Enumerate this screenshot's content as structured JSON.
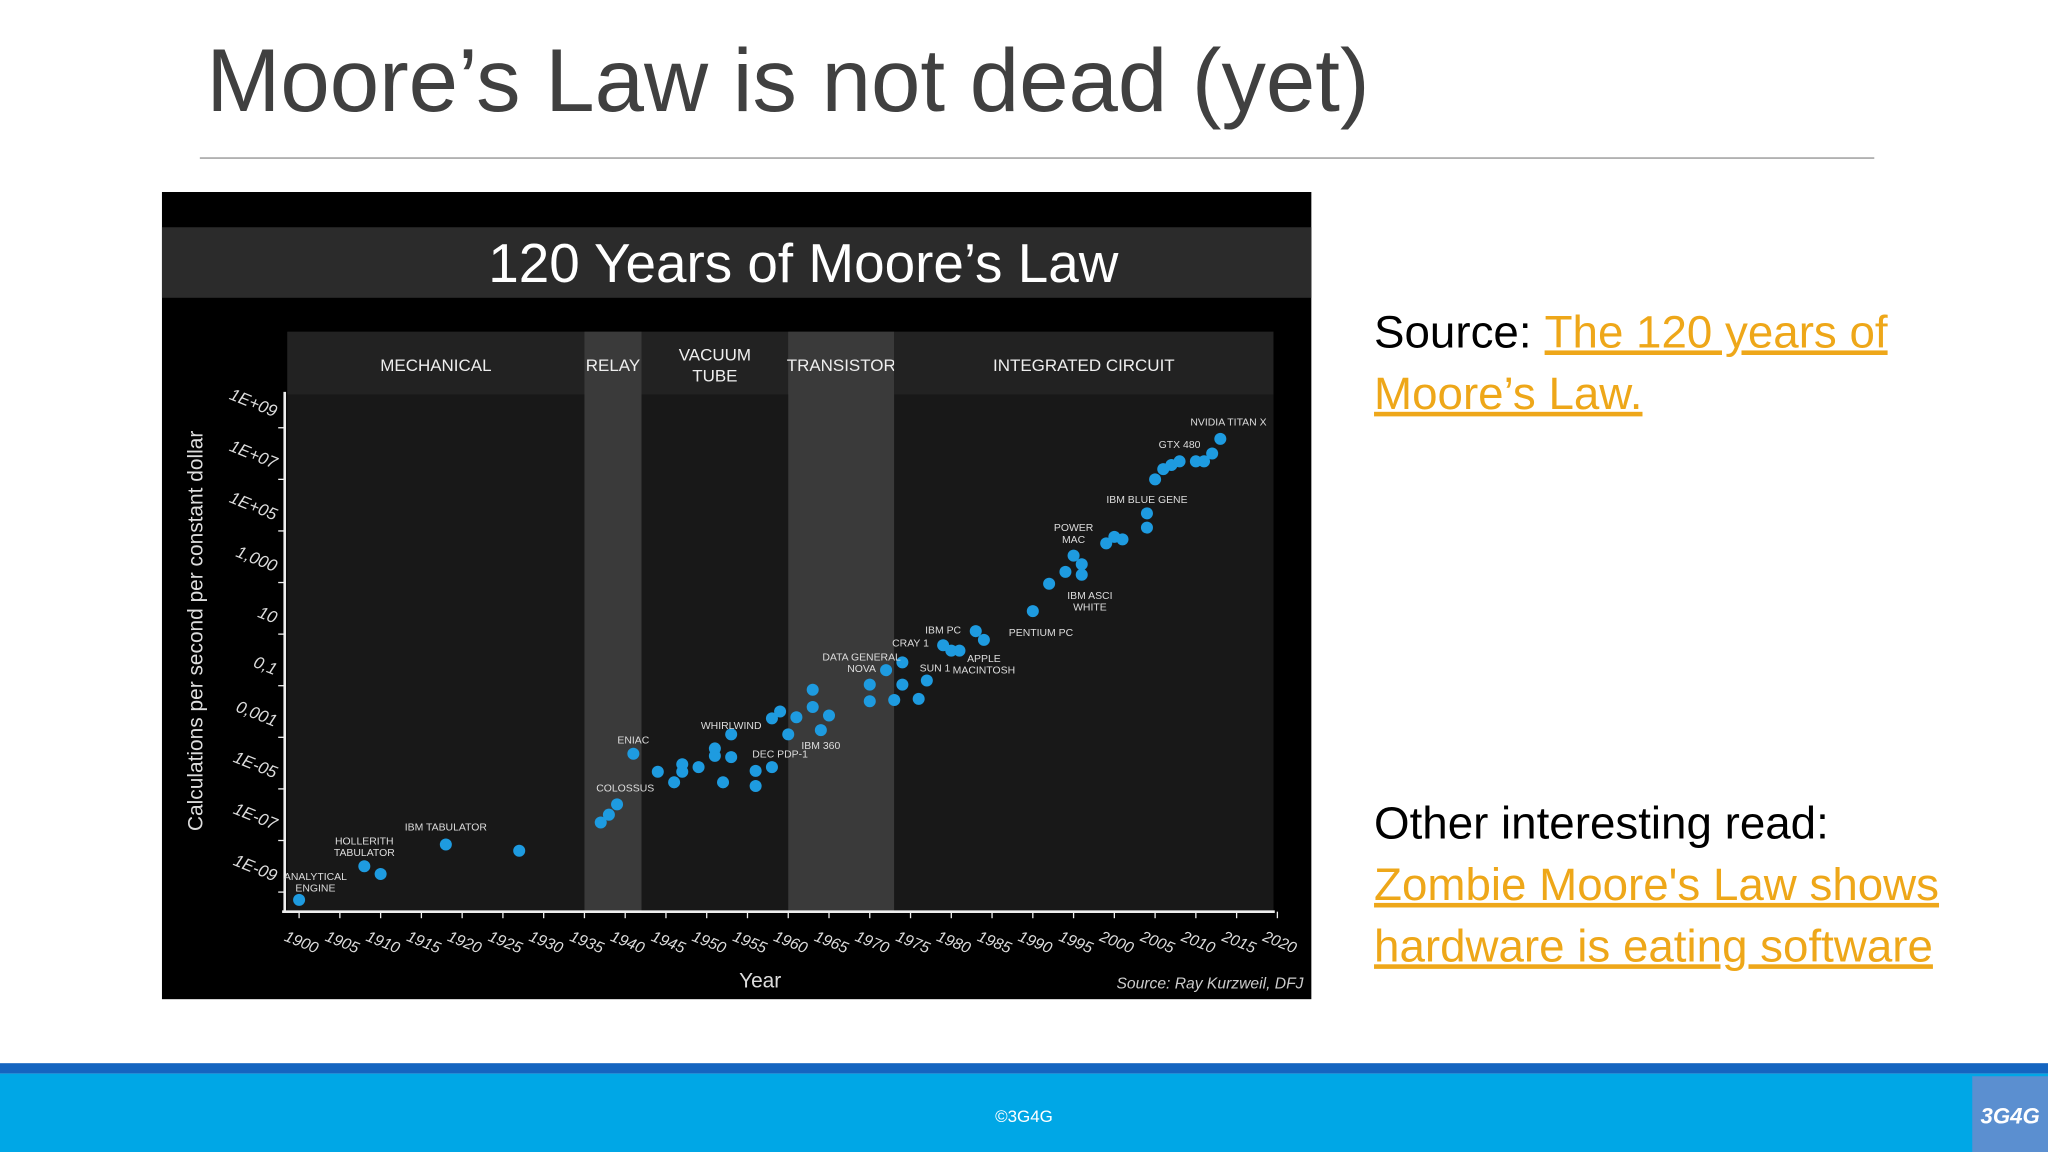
{
  "header": {
    "title": "Moore’s Law is not dead (yet)"
  },
  "chart_data": {
    "type": "scatter",
    "title": "120 Years of Moore’s Law",
    "xlabel": "Year",
    "ylabel": "Calculations per second per constant dollar",
    "source": "Source: Ray Kurzweil, DFJ",
    "color": "#1e9be0",
    "log_y": true,
    "eras": [
      {
        "label": [
          "MECHANICAL"
        ],
        "start": 1898,
        "end": 1935
      },
      {
        "label": [
          "RELAY"
        ],
        "start": 1935,
        "end": 1942,
        "highlight": true
      },
      {
        "label": [
          "VACUUM",
          "TUBE"
        ],
        "start": 1942,
        "end": 1960
      },
      {
        "label": [
          "TRANSISTOR"
        ],
        "start": 1960,
        "end": 1973,
        "highlight": true
      },
      {
        "label": [
          "INTEGRATED CIRCUIT"
        ],
        "start": 1973,
        "end": 2020
      }
    ],
    "xlim": [
      1900,
      2020
    ],
    "xticks": [
      1900,
      1905,
      1910,
      1915,
      1920,
      1925,
      1930,
      1935,
      1940,
      1945,
      1950,
      1955,
      1960,
      1965,
      1970,
      1975,
      1980,
      1985,
      1990,
      1995,
      2000,
      2005,
      2010,
      2015,
      2020
    ],
    "ylim": [
      1e-10,
      10000000000.0
    ],
    "yticks": [
      {
        "value": 1000000000.0,
        "label": "1E+09"
      },
      {
        "value": 10000000.0,
        "label": "1E+07"
      },
      {
        "value": 100000.0,
        "label": "1E+05"
      },
      {
        "value": 1000,
        "label": "1,000"
      },
      10,
      {
        "value": 0.1,
        "label": "0,1"
      },
      {
        "value": 0.001,
        "label": "0,001"
      },
      {
        "value": 1e-05,
        "label": "1E-05"
      },
      {
        "value": 1e-07,
        "label": "1E-07"
      },
      {
        "value": 1e-09,
        "label": "1E-09"
      }
    ],
    "x": [
      1900,
      1908,
      1910,
      1918,
      1927,
      1937,
      1938,
      1939,
      1941,
      1944,
      1946,
      1947,
      1947,
      1949,
      1951,
      1951,
      1952,
      1953,
      1953,
      1956,
      1956,
      1958,
      1958,
      1959,
      1960,
      1961,
      1963,
      1963,
      1964,
      1965,
      1970,
      1970,
      1972,
      1973,
      1974,
      1974,
      1976,
      1977,
      1979,
      1980,
      1981,
      1983,
      1984,
      1990,
      1992,
      1994,
      1995,
      1996,
      1996,
      1999,
      2000,
      2001,
      2004,
      2004,
      2005,
      2006,
      2007,
      2008,
      2010,
      2011,
      2012,
      2013
    ],
    "y": [
      5e-10,
      1e-08,
      5e-09,
      7e-08,
      4e-08,
      5e-07,
      1e-06,
      2.5e-06,
      0.00023,
      4.6e-05,
      1.8e-05,
      9e-05,
      4.6e-05,
      7e-05,
      0.00037,
      0.00019,
      1.8e-05,
      0.0013,
      0.00017,
      5e-05,
      1.3e-05,
      7e-05,
      0.0054,
      0.01,
      0.0013,
      0.006,
      0.07,
      0.015,
      0.0019,
      0.007,
      0.11,
      0.025,
      0.4,
      0.028,
      0.8,
      0.11,
      0.031,
      0.16,
      3.7,
      2.3,
      2.3,
      13,
      6,
      78,
      900,
      2600,
      11000,
      5100,
      2000,
      33000,
      59000,
      47000,
      480000,
      135000,
      10000000.0,
      25000000.0,
      36000000.0,
      50000000.0,
      50000000.0,
      50000000.0,
      100000000.0,
      370000000.0
    ],
    "annotations": [
      {
        "text": [
          "ANALYTICAL",
          "ENGINE"
        ],
        "x": 1902,
        "y": 2.5e-09
      },
      {
        "text": [
          "HOLLERITH",
          "TABULATOR"
        ],
        "x": 1908,
        "y": 6e-08
      },
      {
        "text": [
          "IBM TABULATOR"
        ],
        "x": 1918,
        "y": 3.4e-07
      },
      {
        "text": [
          "COLOSSUS"
        ],
        "x": 1940,
        "y": 1.1e-05
      },
      {
        "text": [
          "ENIAC"
        ],
        "x": 1941,
        "y": 0.0008
      },
      {
        "text": [
          "WHIRLWIND"
        ],
        "x": 1953,
        "y": 0.003
      },
      {
        "text": [
          "DEC PDP-1"
        ],
        "x": 1959,
        "y": 0.00023
      },
      {
        "text": [
          "IBM 360"
        ],
        "x": 1964,
        "y": 0.0005
      },
      {
        "text": [
          "DATA GENERAL",
          "NOVA"
        ],
        "x": 1969,
        "y": 0.8
      },
      {
        "text": [
          "CRAY 1"
        ],
        "x": 1975,
        "y": 4.7
      },
      {
        "text": [
          "SUN 1"
        ],
        "x": 1978,
        "y": 0.5
      },
      {
        "text": [
          "IBM PC"
        ],
        "x": 1979,
        "y": 15
      },
      {
        "text": [
          "APPLE",
          "MACINTOSH"
        ],
        "x": 1984,
        "y": 0.7
      },
      {
        "text": [
          "PENTIUM PC"
        ],
        "x": 1991,
        "y": 12
      },
      {
        "text": [
          "POWER",
          "MAC"
        ],
        "x": 1995,
        "y": 83000
      },
      {
        "text": [
          "IBM ASCI",
          "WHITE"
        ],
        "x": 1997,
        "y": 195
      },
      {
        "text": [
          "IBM BLUE GENE"
        ],
        "x": 2004,
        "y": 1700000.0
      },
      {
        "text": [
          "GTX 480"
        ],
        "x": 2008,
        "y": 230000000.0
      },
      {
        "text": [
          "NVIDIA TITAN X"
        ],
        "x": 2014,
        "y": 1700000000.0
      }
    ]
  },
  "sidebar": {
    "source": {
      "label": "Source:",
      "link": [
        "The 120 years of",
        "Moore’s Law."
      ]
    },
    "other": {
      "label": "Other interesting read:",
      "link": [
        "Zombie Moore's Law shows",
        "hardware is eating software"
      ]
    }
  },
  "footer": {
    "copyright": "©3G4G",
    "logo": "3G4G"
  }
}
